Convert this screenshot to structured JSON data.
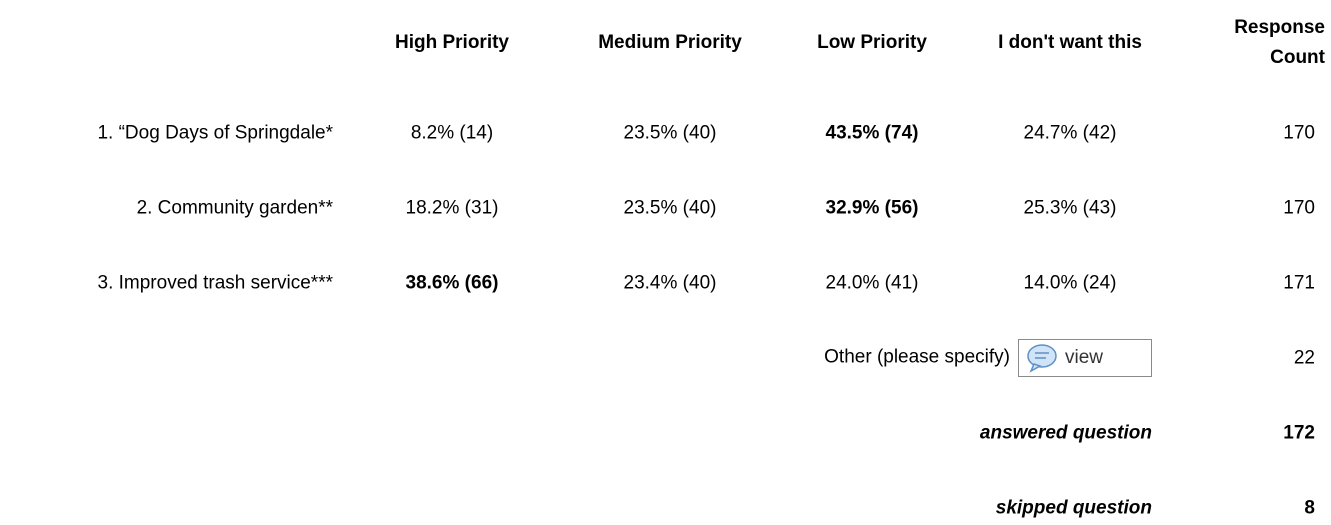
{
  "header": {
    "columns": [
      "High Priority",
      "Medium Priority",
      "Low Priority",
      "I don't want this",
      "Response Count"
    ]
  },
  "rows": [
    {
      "label": "1. “Dog Days of Springdale*",
      "cells": [
        "8.2% (14)",
        "23.5% (40)",
        "43.5% (74)",
        "24.7% (42)"
      ],
      "count": 170
    },
    {
      "label": "2. Community garden**",
      "cells": [
        "18.2% (31)",
        "23.5% (40)",
        "32.9% (56)",
        "25.3% (43)"
      ],
      "count": 170
    },
    {
      "label": "3. Improved trash service***",
      "cells": [
        "38.6% (66)",
        "23.4% (40)",
        "24.0% (41)",
        "14.0% (24)"
      ],
      "count": 171
    }
  ],
  "other": {
    "label": "Other (please specify)",
    "button": "view",
    "count": 22
  },
  "answered": {
    "label": "answered question",
    "count": 172
  },
  "skipped": {
    "label": "skipped question",
    "count": 8
  }
}
